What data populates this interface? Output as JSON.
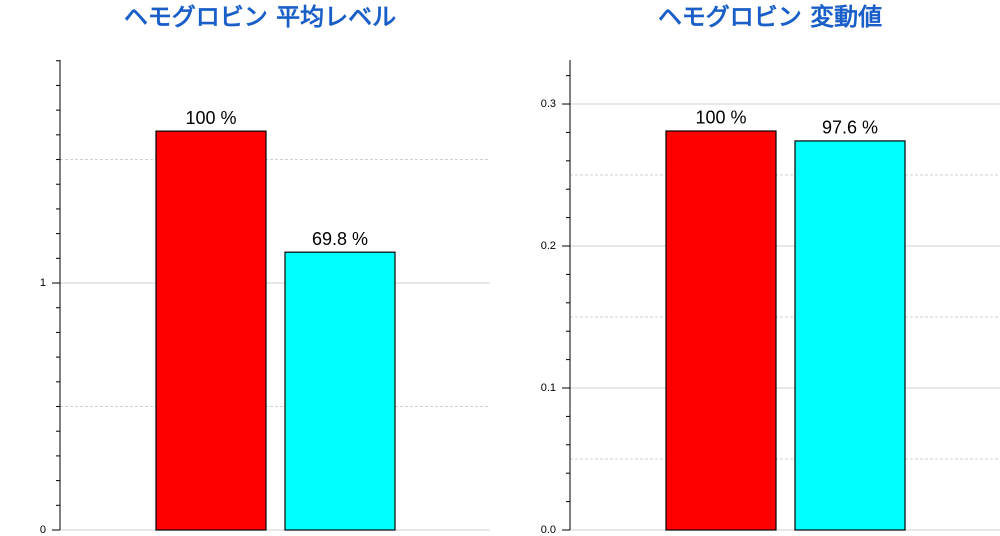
{
  "chart_data": [
    {
      "type": "bar",
      "title": "ヘモグロビン 平均レベル",
      "values": [
        1.615,
        1.125
      ],
      "annotations": [
        "100 %",
        "69.8 %"
      ],
      "colors": [
        "#ff0000",
        "#00ffff"
      ],
      "ylim": [
        0,
        1.903
      ],
      "yticks": [
        0,
        1
      ],
      "dashed_grid": [
        0.5,
        1.5
      ],
      "minor_ticks": [
        0.1,
        0.2,
        0.3,
        0.4,
        0.5,
        0.6,
        0.7,
        0.8,
        0.9,
        1.1,
        1.2,
        1.3,
        1.4,
        1.5,
        1.6,
        1.7,
        1.8,
        1.9
      ],
      "grid": true
    },
    {
      "type": "bar",
      "title": "ヘモグロビン 変動値",
      "values": [
        0.281,
        0.274
      ],
      "annotations": [
        "100 %",
        "97.6 %"
      ],
      "colors": [
        "#ff0000",
        "#00ffff"
      ],
      "ylim": [
        0,
        0.331
      ],
      "yticks": [
        {
          "value": 0,
          "label": "0.0"
        },
        {
          "value": 0.1,
          "label": "0.1"
        },
        {
          "value": 0.2,
          "label": "0.2"
        },
        {
          "value": 0.3,
          "label": "0.3"
        }
      ],
      "dashed_grid": [
        0.05,
        0.15,
        0.25
      ],
      "minor_ticks": [
        0.02,
        0.04,
        0.06,
        0.08,
        0.12,
        0.14,
        0.16,
        0.18,
        0.22,
        0.24,
        0.26,
        0.28,
        0.32
      ],
      "grid": true
    }
  ]
}
